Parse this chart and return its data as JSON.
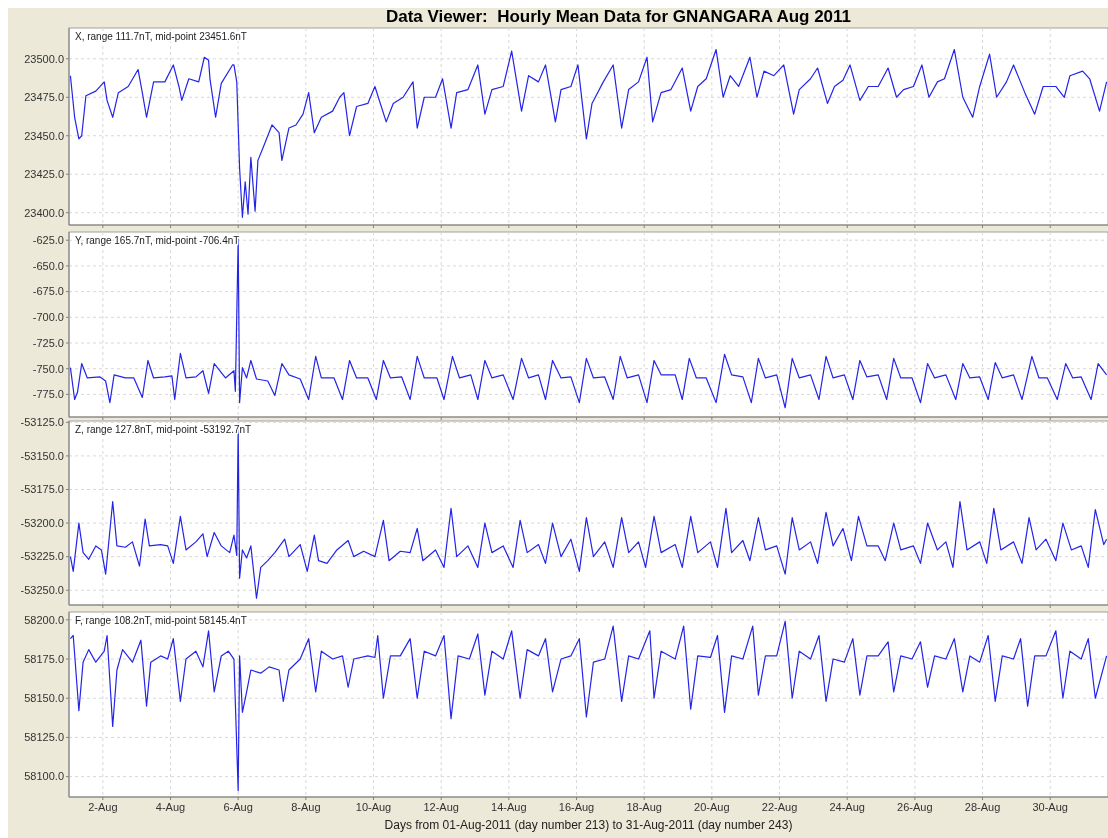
{
  "chart_data": [
    {
      "type": "line",
      "title": "Data Viewer:  Hourly Mean Data for GNANGARA Aug 2011",
      "annotations": [
        "X, range 111.7nT, mid-point 23451.6nT"
      ],
      "grid": true,
      "tick_labels": "y",
      "xlim": [
        "2011-08-01T00:00",
        "2011-08-31T17:00"
      ],
      "xticks": [
        {
          "value": "2011-08-02",
          "label": null
        },
        {
          "value": "2011-08-04",
          "label": null
        },
        {
          "value": "2011-08-06",
          "label": null
        },
        {
          "value": "2011-08-08",
          "label": null
        },
        {
          "value": "2011-08-10",
          "label": null
        },
        {
          "value": "2011-08-12",
          "label": null
        },
        {
          "value": "2011-08-14",
          "label": null
        },
        {
          "value": "2011-08-16",
          "label": null
        },
        {
          "value": "2011-08-18",
          "label": null
        },
        {
          "value": "2011-08-20",
          "label": null
        },
        {
          "value": "2011-08-22",
          "label": null
        },
        {
          "value": "2011-08-24",
          "label": null
        },
        {
          "value": "2011-08-26",
          "label": null
        },
        {
          "value": "2011-08-28",
          "label": null
        },
        {
          "value": "2011-08-30",
          "label": null
        }
      ],
      "ylim": [
        23392,
        23520
      ],
      "yticks": [
        {
          "value": 23400,
          "label": "23400.0"
        },
        {
          "value": 23425,
          "label": "23425.0"
        },
        {
          "value": 23450,
          "label": "23450.0"
        },
        {
          "value": 23475,
          "label": "23475.0"
        },
        {
          "value": 23500,
          "label": "23500.0"
        }
      ],
      "series": [
        {
          "color": "#2424e8",
          "x": [
            "2011-08-01T01:00",
            "2011-08-01T04:00",
            "2011-08-01T07:00",
            "2011-08-01T09:00",
            "2011-08-01T12:00",
            "2011-08-01T19:00",
            "2011-08-02T01:00",
            "2011-08-02T03:00",
            "2011-08-02T07:00",
            "2011-08-02T11:00",
            "2011-08-02T18:00",
            "2011-08-03T01:00",
            "2011-08-03T04:00",
            "2011-08-03T07:00",
            "2011-08-03T12:00",
            "2011-08-03T20:00",
            "2011-08-04T02:00",
            "2011-08-04T06:00",
            "2011-08-04T08:00",
            "2011-08-04T13:00",
            "2011-08-04T20:00",
            "2011-08-05T00:00",
            "2011-08-05T03:00",
            "2011-08-05T04:00",
            "2011-08-05T08:00",
            "2011-08-05T12:00",
            "2011-08-05T20:00",
            "2011-08-05T21:00",
            "2011-08-05T23:00",
            "2011-08-06T01:00",
            "2011-08-06T03:00",
            "2011-08-06T05:00",
            "2011-08-06T07:00",
            "2011-08-06T09:00",
            "2011-08-06T12:00",
            "2011-08-06T14:00",
            "2011-08-06T18:00",
            "2011-08-07T00:00",
            "2011-08-07T05:00",
            "2011-08-07T07:00",
            "2011-08-07T12:00",
            "2011-08-07T17:00",
            "2011-08-07T22:00",
            "2011-08-08T02:00",
            "2011-08-08T06:00",
            "2011-08-08T11:00",
            "2011-08-08T19:00",
            "2011-08-09T00:00",
            "2011-08-09T03:00",
            "2011-08-09T07:00",
            "2011-08-09T12:00",
            "2011-08-09T20:00",
            "2011-08-10T01:00",
            "2011-08-10T09:00",
            "2011-08-10T14:00",
            "2011-08-10T21:00",
            "2011-08-11T04:00",
            "2011-08-11T07:00",
            "2011-08-11T12:00",
            "2011-08-11T20:00",
            "2011-08-12T01:00",
            "2011-08-12T07:00",
            "2011-08-12T11:00",
            "2011-08-12T19:00",
            "2011-08-13T02:00",
            "2011-08-13T07:00",
            "2011-08-13T12:00",
            "2011-08-13T20:00",
            "2011-08-14T02:00",
            "2011-08-14T09:00",
            "2011-08-14T14:00",
            "2011-08-14T21:00",
            "2011-08-15T02:00",
            "2011-08-15T09:00",
            "2011-08-15T13:00",
            "2011-08-15T20:00",
            "2011-08-16T01:00",
            "2011-08-16T07:00",
            "2011-08-16T11:00",
            "2011-08-16T19:00",
            "2011-08-17T02:00",
            "2011-08-17T08:00",
            "2011-08-17T13:00",
            "2011-08-17T20:00",
            "2011-08-18T02:00",
            "2011-08-18T06:00",
            "2011-08-18T12:00",
            "2011-08-18T19:00",
            "2011-08-19T03:00",
            "2011-08-19T09:00",
            "2011-08-19T14:00",
            "2011-08-19T20:00",
            "2011-08-20T03:00",
            "2011-08-20T08:00",
            "2011-08-20T13:00",
            "2011-08-20T19:00",
            "2011-08-21T03:00",
            "2011-08-21T08:00",
            "2011-08-21T13:00",
            "2011-08-21T20:00",
            "2011-08-22T03:00",
            "2011-08-22T10:00",
            "2011-08-22T14:00",
            "2011-08-22T22:00",
            "2011-08-23T03:00",
            "2011-08-23T10:00",
            "2011-08-23T15:00",
            "2011-08-23T21:00",
            "2011-08-24T02:00",
            "2011-08-24T09:00",
            "2011-08-24T15:00",
            "2011-08-24T22:00",
            "2011-08-25T05:00",
            "2011-08-25T11:00",
            "2011-08-25T16:00",
            "2011-08-25T23:00",
            "2011-08-26T05:00",
            "2011-08-26T10:00",
            "2011-08-26T16:00",
            "2011-08-26T21:00",
            "2011-08-27T04:00",
            "2011-08-27T10:00",
            "2011-08-27T17:00",
            "2011-08-27T22:00",
            "2011-08-28T05:00",
            "2011-08-28T10:00",
            "2011-08-28T17:00",
            "2011-08-28T22:00",
            "2011-08-29T06:00",
            "2011-08-29T13:00",
            "2011-08-29T19:00",
            "2011-08-30T04:00",
            "2011-08-30T10:00",
            "2011-08-30T14:00",
            "2011-08-30T23:00",
            "2011-08-31T04:00",
            "2011-08-31T11:00",
            "2011-08-31T16:00"
          ],
          "values": [
            23489,
            23462,
            23448,
            23450,
            23476,
            23479,
            23485,
            23473,
            23462,
            23478,
            23482,
            23493,
            23478,
            23462,
            23485,
            23485,
            23496,
            23482,
            23473,
            23487,
            23485,
            23501,
            23499,
            23487,
            23462,
            23484,
            23496,
            23496,
            23485,
            23429,
            23397,
            23420,
            23399,
            23436,
            23401,
            23434,
            23443,
            23457,
            23452,
            23434,
            23455,
            23457,
            23464,
            23478,
            23452,
            23462,
            23466,
            23475,
            23478,
            23450,
            23469,
            23471,
            23482,
            23459,
            23471,
            23475,
            23485,
            23455,
            23475,
            23475,
            23487,
            23455,
            23478,
            23480,
            23496,
            23464,
            23480,
            23482,
            23505,
            23466,
            23489,
            23485,
            23496,
            23459,
            23480,
            23482,
            23496,
            23448,
            23471,
            23485,
            23496,
            23455,
            23480,
            23485,
            23501,
            23459,
            23478,
            23480,
            23494,
            23466,
            23482,
            23487,
            23506,
            23475,
            23489,
            23482,
            23501,
            23475,
            23492,
            23489,
            23496,
            23464,
            23480,
            23487,
            23494,
            23471,
            23482,
            23486,
            23496,
            23473,
            23482,
            23482,
            23494,
            23475,
            23480,
            23482,
            23496,
            23475,
            23485,
            23487,
            23506,
            23475,
            23462,
            23482,
            23503,
            23475,
            23485,
            23496,
            23478,
            23464,
            23482,
            23482,
            23475,
            23489,
            23492,
            23487,
            23466,
            23485
          ]
        }
      ]
    },
    {
      "type": "line",
      "annotations": [
        "Y, range 165.7nT, mid-point -706.4nT"
      ],
      "grid": true,
      "tick_labels": "y",
      "xlim": [
        "2011-08-01T00:00",
        "2011-08-31T17:00"
      ],
      "xticks": [
        {
          "value": "2011-08-02",
          "label": null
        },
        {
          "value": "2011-08-04",
          "label": null
        },
        {
          "value": "2011-08-06",
          "label": null
        },
        {
          "value": "2011-08-08",
          "label": null
        },
        {
          "value": "2011-08-10",
          "label": null
        },
        {
          "value": "2011-08-12",
          "label": null
        },
        {
          "value": "2011-08-14",
          "label": null
        },
        {
          "value": "2011-08-16",
          "label": null
        },
        {
          "value": "2011-08-18",
          "label": null
        },
        {
          "value": "2011-08-20",
          "label": null
        },
        {
          "value": "2011-08-22",
          "label": null
        },
        {
          "value": "2011-08-24",
          "label": null
        },
        {
          "value": "2011-08-26",
          "label": null
        },
        {
          "value": "2011-08-28",
          "label": null
        },
        {
          "value": "2011-08-30",
          "label": null
        }
      ],
      "ylim": [
        -797,
        -617
      ],
      "yticks": [
        {
          "value": -775,
          "label": "-775.0"
        },
        {
          "value": -750,
          "label": "-750.0"
        },
        {
          "value": -725,
          "label": "-725.0"
        },
        {
          "value": -700,
          "label": "-700.0"
        },
        {
          "value": -675,
          "label": "-675.0"
        },
        {
          "value": -650,
          "label": "-650.0"
        },
        {
          "value": -625,
          "label": "-625.0"
        }
      ],
      "series": [
        {
          "color": "#2424e8",
          "x": [
            "2011-08-01T01:00",
            "2011-08-01T04:00",
            "2011-08-01T06:00",
            "2011-08-01T09:00",
            "2011-08-01T13:00",
            "2011-08-01T22:00",
            "2011-08-02T02:00",
            "2011-08-02T05:00",
            "2011-08-02T08:00",
            "2011-08-02T16:00",
            "2011-08-02T22:00",
            "2011-08-03T04:00",
            "2011-08-03T08:00",
            "2011-08-03T12:00",
            "2011-08-03T20:00",
            "2011-08-04T01:00",
            "2011-08-04T03:00",
            "2011-08-04T07:00",
            "2011-08-04T11:00",
            "2011-08-04T18:00",
            "2011-08-04T23:00",
            "2011-08-05T03:00",
            "2011-08-05T07:00",
            "2011-08-05T15:00",
            "2011-08-05T21:00",
            "2011-08-05T22:00",
            "2011-08-06T00:00",
            "2011-08-06T01:00",
            "2011-08-06T03:00",
            "2011-08-06T06:00",
            "2011-08-06T09:00",
            "2011-08-06T13:00",
            "2011-08-06T21:00",
            "2011-08-07T02:00",
            "2011-08-07T07:00",
            "2011-08-07T12:00",
            "2011-08-07T20:00",
            "2011-08-08T02:00",
            "2011-08-08T07:00",
            "2011-08-08T11:00",
            "2011-08-08T20:00",
            "2011-08-09T02:00",
            "2011-08-09T07:00",
            "2011-08-09T12:00",
            "2011-08-09T20:00",
            "2011-08-10T02:00",
            "2011-08-10T07:00",
            "2011-08-10T12:00",
            "2011-08-10T20:00",
            "2011-08-11T02:00",
            "2011-08-11T07:00",
            "2011-08-11T12:00",
            "2011-08-11T21:00",
            "2011-08-12T02:00",
            "2011-08-12T08:00",
            "2011-08-12T13:00",
            "2011-08-12T21:00",
            "2011-08-13T02:00",
            "2011-08-13T07:00",
            "2011-08-13T12:00",
            "2011-08-13T20:00",
            "2011-08-14T03:00",
            "2011-08-14T09:00",
            "2011-08-14T14:00",
            "2011-08-14T21:00",
            "2011-08-15T02:00",
            "2011-08-15T07:00",
            "2011-08-15T13:00",
            "2011-08-15T20:00",
            "2011-08-16T02:00",
            "2011-08-16T07:00",
            "2011-08-16T12:00",
            "2011-08-16T20:00",
            "2011-08-17T02:00",
            "2011-08-17T07:00",
            "2011-08-17T12:00",
            "2011-08-17T20:00",
            "2011-08-18T02:00",
            "2011-08-18T07:00",
            "2011-08-18T12:00",
            "2011-08-18T22:00",
            "2011-08-19T03:00",
            "2011-08-19T08:00",
            "2011-08-19T13:00",
            "2011-08-19T20:00",
            "2011-08-20T03:00",
            "2011-08-20T09:00",
            "2011-08-20T14:00",
            "2011-08-20T22:00",
            "2011-08-21T04:00",
            "2011-08-21T09:00",
            "2011-08-21T14:00",
            "2011-08-21T22:00",
            "2011-08-22T04:00",
            "2011-08-22T09:00",
            "2011-08-22T14:00",
            "2011-08-22T22:00",
            "2011-08-23T04:00",
            "2011-08-23T09:00",
            "2011-08-23T14:00",
            "2011-08-23T22:00",
            "2011-08-24T04:00",
            "2011-08-24T09:00",
            "2011-08-24T14:00",
            "2011-08-24T22:00",
            "2011-08-25T04:00",
            "2011-08-25T09:00",
            "2011-08-25T14:00",
            "2011-08-25T22:00",
            "2011-08-26T04:00",
            "2011-08-26T09:00",
            "2011-08-26T14:00",
            "2011-08-26T22:00",
            "2011-08-27T05:00",
            "2011-08-27T10:00",
            "2011-08-27T15:00",
            "2011-08-27T22:00",
            "2011-08-28T04:00",
            "2011-08-28T09:00",
            "2011-08-28T14:00",
            "2011-08-28T22:00",
            "2011-08-29T04:00",
            "2011-08-29T11:00",
            "2011-08-29T16:00",
            "2011-08-29T22:00",
            "2011-08-30T05:00",
            "2011-08-30T11:00",
            "2011-08-30T16:00",
            "2011-08-30T22:00",
            "2011-08-31T05:00",
            "2011-08-31T10:00",
            "2011-08-31T16:00"
          ],
          "values": [
            -749,
            -780,
            -773,
            -745,
            -759,
            -758,
            -762,
            -783,
            -756,
            -759,
            -759,
            -778,
            -742,
            -759,
            -758,
            -757,
            -780,
            -735,
            -759,
            -758,
            -752,
            -774,
            -745,
            -759,
            -752,
            -772,
            -624,
            -783,
            -749,
            -759,
            -742,
            -760,
            -762,
            -776,
            -745,
            -756,
            -760,
            -780,
            -738,
            -759,
            -759,
            -780,
            -742,
            -759,
            -759,
            -780,
            -742,
            -759,
            -758,
            -780,
            -738,
            -759,
            -759,
            -780,
            -738,
            -759,
            -756,
            -780,
            -742,
            -759,
            -756,
            -780,
            -740,
            -759,
            -756,
            -780,
            -742,
            -759,
            -758,
            -783,
            -740,
            -759,
            -758,
            -780,
            -738,
            -759,
            -756,
            -783,
            -742,
            -756,
            -756,
            -780,
            -740,
            -759,
            -759,
            -783,
            -736,
            -756,
            -758,
            -783,
            -740,
            -759,
            -756,
            -788,
            -740,
            -759,
            -756,
            -780,
            -738,
            -759,
            -756,
            -780,
            -742,
            -758,
            -756,
            -780,
            -740,
            -759,
            -759,
            -783,
            -745,
            -759,
            -756,
            -780,
            -745,
            -759,
            -758,
            -780,
            -744,
            -759,
            -756,
            -780,
            -738,
            -759,
            -759,
            -780,
            -745,
            -759,
            -758,
            -780,
            -745,
            -756
          ]
        }
      ]
    },
    {
      "type": "line",
      "annotations": [
        "Z, range 127.8nT, mid-point -53192.7nT"
      ],
      "grid": true,
      "tick_labels": "y",
      "xlim": [
        "2011-08-01T00:00",
        "2011-08-31T17:00"
      ],
      "xticks": [
        {
          "value": "2011-08-02",
          "label": null
        },
        {
          "value": "2011-08-04",
          "label": null
        },
        {
          "value": "2011-08-06",
          "label": null
        },
        {
          "value": "2011-08-08",
          "label": null
        },
        {
          "value": "2011-08-10",
          "label": null
        },
        {
          "value": "2011-08-12",
          "label": null
        },
        {
          "value": "2011-08-14",
          "label": null
        },
        {
          "value": "2011-08-16",
          "label": null
        },
        {
          "value": "2011-08-18",
          "label": null
        },
        {
          "value": "2011-08-20",
          "label": null
        },
        {
          "value": "2011-08-22",
          "label": null
        },
        {
          "value": "2011-08-24",
          "label": null
        },
        {
          "value": "2011-08-26",
          "label": null
        },
        {
          "value": "2011-08-28",
          "label": null
        },
        {
          "value": "2011-08-30",
          "label": null
        }
      ],
      "ylim": [
        -53261,
        -53124
      ],
      "yticks": [
        {
          "value": -53250,
          "label": "-53250.0"
        },
        {
          "value": -53225,
          "label": "-53225.0"
        },
        {
          "value": -53200,
          "label": "-53200.0"
        },
        {
          "value": -53175,
          "label": "-53175.0"
        },
        {
          "value": -53150,
          "label": "-53150.0"
        },
        {
          "value": -53125,
          "label": "-53125.0"
        }
      ],
      "series": [
        {
          "color": "#2424e8",
          "x": [
            "2011-08-01T01:00",
            "2011-08-01T03:00",
            "2011-08-01T07:00",
            "2011-08-01T10:00",
            "2011-08-01T14:00",
            "2011-08-01T19:00",
            "2011-08-01T23:00",
            "2011-08-02T02:00",
            "2011-08-02T07:00",
            "2011-08-02T10:00",
            "2011-08-02T16:00",
            "2011-08-02T21:00",
            "2011-08-03T02:00",
            "2011-08-03T06:00",
            "2011-08-03T09:00",
            "2011-08-03T17:00",
            "2011-08-03T22:00",
            "2011-08-04T02:00",
            "2011-08-04T07:00",
            "2011-08-04T11:00",
            "2011-08-04T18:00",
            "2011-08-04T23:00",
            "2011-08-05T02:00",
            "2011-08-05T07:00",
            "2011-08-05T12:00",
            "2011-08-05T18:00",
            "2011-08-05T21:00",
            "2011-08-05T23:00",
            "2011-08-06T00:00",
            "2011-08-06T01:00",
            "2011-08-06T03:00",
            "2011-08-06T06:00",
            "2011-08-06T09:00",
            "2011-08-06T13:00",
            "2011-08-06T16:00",
            "2011-08-06T21:00",
            "2011-08-07T02:00",
            "2011-08-07T09:00",
            "2011-08-07T12:00",
            "2011-08-07T20:00",
            "2011-08-08T01:00",
            "2011-08-08T06:00",
            "2011-08-08T09:00",
            "2011-08-08T15:00",
            "2011-08-08T22:00",
            "2011-08-09T06:00",
            "2011-08-09T10:00",
            "2011-08-09T17:00",
            "2011-08-10T01:00",
            "2011-08-10T07:00",
            "2011-08-10T11:00",
            "2011-08-10T19:00",
            "2011-08-11T02:00",
            "2011-08-11T07:00",
            "2011-08-11T11:00",
            "2011-08-11T20:00",
            "2011-08-12T02:00",
            "2011-08-12T07:00",
            "2011-08-12T11:00",
            "2011-08-12T19:00",
            "2011-08-13T02:00",
            "2011-08-13T07:00",
            "2011-08-13T12:00",
            "2011-08-13T20:00",
            "2011-08-14T03:00",
            "2011-08-14T08:00",
            "2011-08-14T13:00",
            "2011-08-14T21:00",
            "2011-08-15T02:00",
            "2011-08-15T07:00",
            "2011-08-15T13:00",
            "2011-08-15T20:00",
            "2011-08-16T02:00",
            "2011-08-16T07:00",
            "2011-08-16T12:00",
            "2011-08-16T20:00",
            "2011-08-17T02:00",
            "2011-08-17T08:00",
            "2011-08-17T13:00",
            "2011-08-17T20:00",
            "2011-08-18T01:00",
            "2011-08-18T07:00",
            "2011-08-18T12:00",
            "2011-08-18T22:00",
            "2011-08-19T03:00",
            "2011-08-19T09:00",
            "2011-08-19T14:00",
            "2011-08-19T23:00",
            "2011-08-20T04:00",
            "2011-08-20T10:00",
            "2011-08-20T14:00",
            "2011-08-20T22:00",
            "2011-08-21T03:00",
            "2011-08-21T09:00",
            "2011-08-21T14:00",
            "2011-08-21T22:00",
            "2011-08-22T04:00",
            "2011-08-22T09:00",
            "2011-08-22T14:00",
            "2011-08-22T22:00",
            "2011-08-23T03:00",
            "2011-08-23T09:00",
            "2011-08-23T14:00",
            "2011-08-23T21:00",
            "2011-08-24T03:00",
            "2011-08-24T08:00",
            "2011-08-24T14:00",
            "2011-08-24T22:00",
            "2011-08-25T03:00",
            "2011-08-25T09:00",
            "2011-08-25T14:00",
            "2011-08-25T23:00",
            "2011-08-26T04:00",
            "2011-08-26T09:00",
            "2011-08-26T16:00",
            "2011-08-26T22:00",
            "2011-08-27T03:00",
            "2011-08-27T08:00",
            "2011-08-27T13:00",
            "2011-08-27T22:00",
            "2011-08-28T03:00",
            "2011-08-28T08:00",
            "2011-08-28T13:00",
            "2011-08-28T22:00",
            "2011-08-29T04:00",
            "2011-08-29T09:00",
            "2011-08-29T14:00",
            "2011-08-29T21:00",
            "2011-08-30T04:00",
            "2011-08-30T09:00",
            "2011-08-30T15:00",
            "2011-08-30T22:00",
            "2011-08-31T03:00",
            "2011-08-31T08:00",
            "2011-08-31T14:00",
            "2011-08-31T16:00"
          ],
          "values": [
            -53225,
            -53236,
            -53200,
            -53222,
            -53227,
            -53217,
            -53220,
            -53238,
            -53184,
            -53217,
            -53218,
            -53214,
            -53232,
            -53197,
            -53217,
            -53216,
            -53217,
            -53230,
            -53195,
            -53220,
            -53214,
            -53208,
            -53225,
            -53207,
            -53217,
            -53222,
            -53209,
            -53224,
            -53129,
            -53241,
            -53220,
            -53226,
            -53217,
            -53256,
            -53233,
            -53228,
            -53222,
            -53212,
            -53225,
            -53216,
            -53236,
            -53209,
            -53228,
            -53230,
            -53220,
            -53213,
            -53225,
            -53221,
            -53225,
            -53198,
            -53228,
            -53221,
            -53222,
            -53204,
            -53228,
            -53220,
            -53233,
            -53189,
            -53225,
            -53217,
            -53233,
            -53200,
            -53222,
            -53217,
            -53233,
            -53198,
            -53222,
            -53216,
            -53230,
            -53200,
            -53225,
            -53212,
            -53236,
            -53196,
            -53225,
            -53214,
            -53233,
            -53196,
            -53222,
            -53214,
            -53233,
            -53195,
            -53222,
            -53216,
            -53233,
            -53195,
            -53222,
            -53214,
            -53233,
            -53189,
            -53222,
            -53213,
            -53228,
            -53196,
            -53220,
            -53217,
            -53238,
            -53196,
            -53220,
            -53214,
            -53230,
            -53192,
            -53217,
            -53204,
            -53228,
            -53195,
            -53217,
            -53217,
            -53228,
            -53200,
            -53220,
            -53217,
            -53230,
            -53200,
            -53220,
            -53214,
            -53233,
            -53184,
            -53220,
            -53214,
            -53230,
            -53189,
            -53220,
            -53214,
            -53230,
            -53196,
            -53220,
            -53212,
            -53228,
            -53200,
            -53220,
            -53217,
            -53233,
            -53190,
            -53216,
            -53212
          ]
        }
      ]
    },
    {
      "type": "line",
      "annotations": [
        "F, range 108.2nT, mid-point 58145.4nT"
      ],
      "grid": true,
      "xlabel": "Days from 01-Aug-2011 (day number 213) to 31-Aug-2011 (day number 243)",
      "xlim": [
        "2011-08-01T00:00",
        "2011-08-31T17:00"
      ],
      "xticks": [
        {
          "value": "2011-08-02",
          "label": "2-Aug"
        },
        {
          "value": "2011-08-04",
          "label": "4-Aug"
        },
        {
          "value": "2011-08-06",
          "label": "6-Aug"
        },
        {
          "value": "2011-08-08",
          "label": "8-Aug"
        },
        {
          "value": "2011-08-10",
          "label": "10-Aug"
        },
        {
          "value": "2011-08-12",
          "label": "12-Aug"
        },
        {
          "value": "2011-08-14",
          "label": "14-Aug"
        },
        {
          "value": "2011-08-16",
          "label": "16-Aug"
        },
        {
          "value": "2011-08-18",
          "label": "18-Aug"
        },
        {
          "value": "2011-08-20",
          "label": "20-Aug"
        },
        {
          "value": "2011-08-22",
          "label": "22-Aug"
        },
        {
          "value": "2011-08-24",
          "label": "24-Aug"
        },
        {
          "value": "2011-08-26",
          "label": "26-Aug"
        },
        {
          "value": "2011-08-28",
          "label": "28-Aug"
        },
        {
          "value": "2011-08-30",
          "label": "30-Aug"
        }
      ],
      "ylim": [
        58087,
        58205
      ],
      "yticks": [
        {
          "value": 58100,
          "label": "58100.0"
        },
        {
          "value": 58125,
          "label": "58125.0"
        },
        {
          "value": 58150,
          "label": "58150.0"
        },
        {
          "value": 58175,
          "label": "58175.0"
        },
        {
          "value": 58200,
          "label": "58200.0"
        }
      ],
      "series": [
        {
          "color": "#2424e8",
          "x": [
            "2011-08-01T01:00",
            "2011-08-01T03:00",
            "2011-08-01T07:00",
            "2011-08-01T10:00",
            "2011-08-01T14:00",
            "2011-08-01T19:00",
            "2011-08-02T01:00",
            "2011-08-02T03:00",
            "2011-08-02T07:00",
            "2011-08-02T10:00",
            "2011-08-02T14:00",
            "2011-08-02T21:00",
            "2011-08-03T03:00",
            "2011-08-03T07:00",
            "2011-08-03T10:00",
            "2011-08-03T17:00",
            "2011-08-03T22:00",
            "2011-08-04T02:00",
            "2011-08-04T07:00",
            "2011-08-04T11:00",
            "2011-08-04T18:00",
            "2011-08-04T23:00",
            "2011-08-05T03:00",
            "2011-08-05T07:00",
            "2011-08-05T12:00",
            "2011-08-05T17:00",
            "2011-08-05T21:00",
            "2011-08-06T00:00",
            "2011-08-06T01:00",
            "2011-08-06T03:00",
            "2011-08-06T06:00",
            "2011-08-06T09:00",
            "2011-08-06T16:00",
            "2011-08-06T22:00",
            "2011-08-07T05:00",
            "2011-08-07T08:00",
            "2011-08-07T12:00",
            "2011-08-07T20:00",
            "2011-08-08T02:00",
            "2011-08-08T07:00",
            "2011-08-08T11:00",
            "2011-08-08T19:00",
            "2011-08-09T02:00",
            "2011-08-09T06:00",
            "2011-08-09T10:00",
            "2011-08-09T20:00",
            "2011-08-10T01:00",
            "2011-08-10T03:00",
            "2011-08-10T07:00",
            "2011-08-10T12:00",
            "2011-08-10T19:00",
            "2011-08-11T02:00",
            "2011-08-11T07:00",
            "2011-08-11T12:00",
            "2011-08-11T20:00",
            "2011-08-12T02:00",
            "2011-08-12T07:00",
            "2011-08-12T12:00",
            "2011-08-12T20:00",
            "2011-08-13T02:00",
            "2011-08-13T07:00",
            "2011-08-13T12:00",
            "2011-08-13T20:00",
            "2011-08-14T02:00",
            "2011-08-14T08:00",
            "2011-08-14T13:00",
            "2011-08-14T21:00",
            "2011-08-15T02:00",
            "2011-08-15T07:00",
            "2011-08-15T13:00",
            "2011-08-15T20:00",
            "2011-08-16T02:00",
            "2011-08-16T07:00",
            "2011-08-16T12:00",
            "2011-08-16T20:00",
            "2011-08-17T02:00",
            "2011-08-17T08:00",
            "2011-08-17T13:00",
            "2011-08-17T20:00",
            "2011-08-18T04:00",
            "2011-08-18T07:00",
            "2011-08-18T12:00",
            "2011-08-18T22:00",
            "2011-08-19T04:00",
            "2011-08-19T09:00",
            "2011-08-19T14:00",
            "2011-08-19T23:00",
            "2011-08-20T04:00",
            "2011-08-20T09:00",
            "2011-08-20T14:00",
            "2011-08-20T22:00",
            "2011-08-21T05:00",
            "2011-08-21T09:00",
            "2011-08-21T14:00",
            "2011-08-21T22:00",
            "2011-08-22T04:00",
            "2011-08-22T09:00",
            "2011-08-22T14:00",
            "2011-08-22T22:00",
            "2011-08-23T04:00",
            "2011-08-23T09:00",
            "2011-08-23T14:00",
            "2011-08-23T22:00",
            "2011-08-24T04:00",
            "2011-08-24T09:00",
            "2011-08-24T14:00",
            "2011-08-24T22:00",
            "2011-08-25T05:00",
            "2011-08-25T09:00",
            "2011-08-25T14:00",
            "2011-08-25T22:00",
            "2011-08-26T04:00",
            "2011-08-26T09:00",
            "2011-08-26T14:00",
            "2011-08-26T22:00",
            "2011-08-27T04:00",
            "2011-08-27T10:00",
            "2011-08-27T15:00",
            "2011-08-27T22:00",
            "2011-08-28T04:00",
            "2011-08-28T09:00",
            "2011-08-28T14:00",
            "2011-08-28T22:00",
            "2011-08-29T03:00",
            "2011-08-29T08:00",
            "2011-08-29T13:00",
            "2011-08-29T21:00",
            "2011-08-30T04:00",
            "2011-08-30T09:00",
            "2011-08-30T14:00",
            "2011-08-30T22:00",
            "2011-08-31T03:00",
            "2011-08-31T08:00",
            "2011-08-31T16:00"
          ],
          "values": [
            58188,
            58190,
            58142,
            58173,
            58181,
            58173,
            58180,
            58190,
            58132,
            58168,
            58181,
            58173,
            58187,
            58145,
            58173,
            58177,
            58175,
            58188,
            58148,
            58175,
            58180,
            58170,
            58193,
            58154,
            58177,
            58180,
            58175,
            58091,
            58177,
            58141,
            58154,
            58168,
            58166,
            58170,
            58168,
            58148,
            58168,
            58175,
            58188,
            58154,
            58180,
            58175,
            58177,
            58157,
            58175,
            58177,
            58176,
            58190,
            58150,
            58177,
            58177,
            58188,
            58150,
            58180,
            58177,
            58190,
            58137,
            58177,
            58175,
            58191,
            58152,
            58180,
            58175,
            58193,
            58150,
            58181,
            58177,
            58188,
            58154,
            58175,
            58177,
            58188,
            58138,
            58173,
            58175,
            58196,
            58148,
            58177,
            58175,
            58193,
            58150,
            58180,
            58175,
            58196,
            58143,
            58177,
            58176,
            58190,
            58141,
            58177,
            58175,
            58196,
            58152,
            58177,
            58177,
            58199,
            58150,
            58180,
            58175,
            58190,
            58148,
            58175,
            58173,
            58188,
            58152,
            58177,
            58177,
            58186,
            58154,
            58177,
            58175,
            58186,
            58157,
            58177,
            58175,
            58188,
            58154,
            58177,
            58173,
            58190,
            58148,
            58177,
            58175,
            58188,
            58145,
            58177,
            58177,
            58193,
            58150,
            58180,
            58175,
            58188,
            58150,
            58177
          ]
        }
      ]
    }
  ]
}
